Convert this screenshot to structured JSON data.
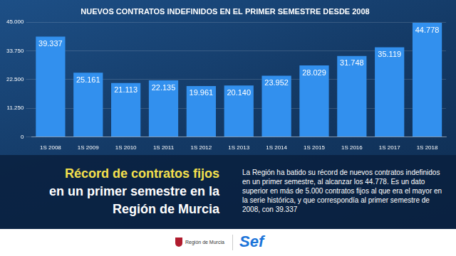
{
  "chart_data": {
    "type": "bar",
    "title": "NUEVOS CONTRATOS INDEFINIDOS EN EL PRIMER SEMESTRE DESDE 2008",
    "categories": [
      "1S 2008",
      "1S 2009",
      "1S 2010",
      "1S 2011",
      "1S 2012",
      "1S 2013",
      "1S 2014",
      "1S 2015",
      "1S 2016",
      "1S 2017",
      "1S 2018"
    ],
    "values": [
      39337,
      25161,
      21113,
      22135,
      19961,
      20140,
      23952,
      28029,
      31748,
      35119,
      44778
    ],
    "value_labels": [
      "39.337",
      "25.161",
      "21.113",
      "22.135",
      "19.961",
      "20.140",
      "23.952",
      "28.029",
      "31.748",
      "35.119",
      "44.778"
    ],
    "color": "#3290ee",
    "ylim": [
      0,
      45000
    ],
    "yticks": [
      0,
      {
        "value": 11250,
        "label": "11.250"
      },
      {
        "value": 22500,
        "label": "22.500"
      },
      {
        "value": 33750,
        "label": "33.750"
      },
      {
        "value": 45000,
        "label": "45.000"
      }
    ],
    "grid": true,
    "data_labels": true
  },
  "headline": [
    "Récord de contratos fijos",
    "en un primer semestre en la",
    "Región de Murcia"
  ],
  "body": "La Región ha batido su récord de nuevos contratos indefinidos en un primer semestre, al alcanzar los 44.778. Es un dato superior en más de 5.000 contratos fijos al que era el mayor en la serie histórica, y que correspondía al primer semestre de 2008, con 39.337",
  "footer": {
    "logo_left": "Región de Murcia",
    "logo_right": "Sef"
  }
}
